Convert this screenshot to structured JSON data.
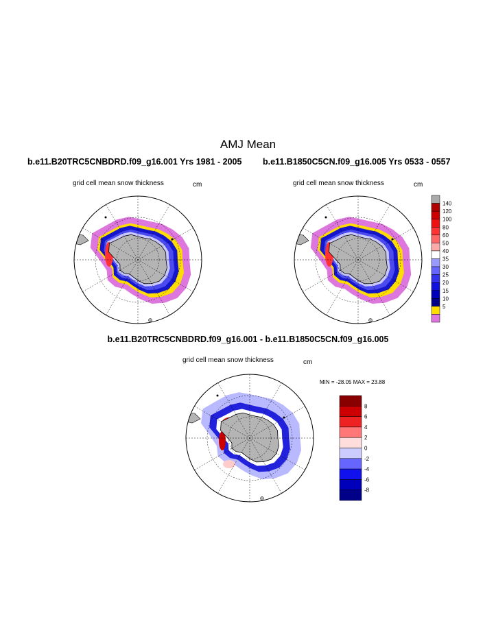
{
  "title": "AMJ Mean",
  "panels": [
    {
      "case": "b.e11.B20TRC5CNBDRD.f09_g16.001  Yrs 1981 - 2005",
      "variable": "grid cell mean snow thickness",
      "units": "cm"
    },
    {
      "case": "b.e11.B1850C5CN.f09_g16.005  Yrs 0533 - 0557",
      "variable": "grid cell mean snow thickness",
      "units": "cm"
    }
  ],
  "difference": {
    "title": "b.e11.B20TRC5CNBDRD.f09_g16.001 - b.e11.B1850C5CN.f09_g16.005",
    "variable": "grid cell mean snow thickness",
    "units": "cm",
    "minmax": "MIN = -28.05  MAX =  23.88"
  },
  "colorbar_main": {
    "labels": [
      "140",
      "120",
      "100",
      "80",
      "60",
      "50",
      "40",
      "35",
      "30",
      "25",
      "20",
      "15",
      "10",
      "5"
    ],
    "colors": [
      "#aaaaaa",
      "#b00000",
      "#cc0000",
      "#ee1111",
      "#ff3333",
      "#ff6666",
      "#ffaaaa",
      "#ffffff",
      "#9999ff",
      "#6666ff",
      "#3333ee",
      "#1111dd",
      "#0000bb",
      "#000088",
      "#ffdd00",
      "#dd77dd"
    ]
  },
  "colorbar_diff": {
    "labels": [
      "8",
      "6",
      "4",
      "2",
      "0",
      "-2",
      "-4",
      "-6",
      "-8"
    ],
    "colors": [
      "#880000",
      "#cc0000",
      "#ee2222",
      "#ff7777",
      "#ffdddd",
      "#ccccff",
      "#6666ff",
      "#1111ee",
      "#0000bb",
      "#000088"
    ]
  },
  "colors": {
    "land": "#b4b4b4",
    "ocean": "#ffffff",
    "snow_outer": "#dd77dd",
    "snow_yellow": "#ffdd00",
    "snow_deep_blue": "#1515cc",
    "diff_light_blue": "#b9b9ff",
    "diff_blue": "#2222dd"
  }
}
